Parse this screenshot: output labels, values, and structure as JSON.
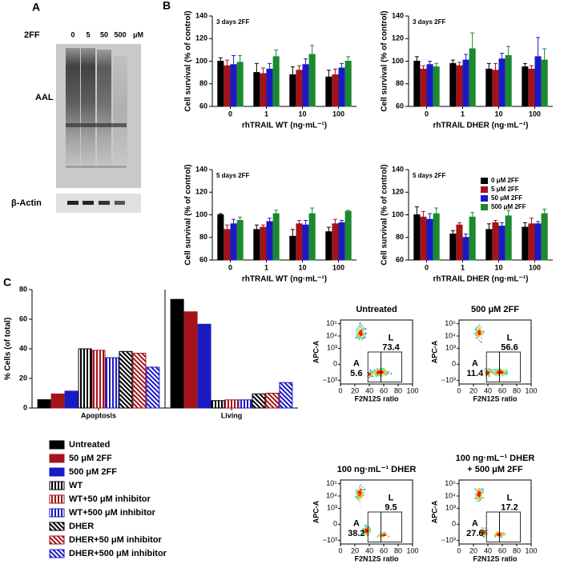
{
  "panel_labels": [
    "A",
    "B",
    "C"
  ],
  "blot": {
    "treatment": "2FF",
    "doses": [
      "0",
      "5",
      "50",
      "500"
    ],
    "unit": "μM",
    "labels": [
      "AAL",
      "β-Actin"
    ]
  },
  "chart_data": [
    {
      "type": "bar",
      "title": "3 days 2FF",
      "ylabel": "Cell survival (% of control)",
      "xlabel": "rhTRAIL WT (ng·mL⁻¹)",
      "categories": [
        "0",
        "1",
        "10",
        "100"
      ],
      "ylim": [
        60,
        140
      ],
      "yticks": [
        60,
        80,
        100,
        120,
        140
      ],
      "series": [
        {
          "color": "#000000",
          "values": [
            100,
            90,
            88,
            86
          ],
          "errors": [
            3,
            8,
            7,
            6
          ]
        },
        {
          "color": "#a3141a",
          "values": [
            96,
            89,
            92,
            88
          ],
          "errors": [
            5,
            5,
            4,
            5
          ]
        },
        {
          "color": "#1a1ac4",
          "values": [
            97,
            93,
            97,
            94
          ],
          "errors": [
            8,
            5,
            5,
            4
          ]
        },
        {
          "color": "#1b8a2e",
          "values": [
            99,
            104,
            106,
            100
          ],
          "errors": [
            6,
            6,
            8,
            4
          ]
        }
      ]
    },
    {
      "type": "bar",
      "title": "3 days 2FF",
      "ylabel": "Cell survival (% of control)",
      "xlabel": "rhTRAIL DHER (ng·mL⁻¹)",
      "categories": [
        "0",
        "1",
        "10",
        "100"
      ],
      "ylim": [
        60,
        140
      ],
      "yticks": [
        60,
        80,
        100,
        120,
        140
      ],
      "series": [
        {
          "color": "#000000",
          "values": [
            100,
            98,
            93,
            95
          ],
          "errors": [
            4,
            3,
            5,
            3
          ]
        },
        {
          "color": "#a3141a",
          "values": [
            93,
            96,
            92,
            93
          ],
          "errors": [
            3,
            3,
            6,
            3
          ]
        },
        {
          "color": "#1a1ac4",
          "values": [
            97,
            101,
            102,
            104
          ],
          "errors": [
            3,
            5,
            5,
            17
          ]
        },
        {
          "color": "#1b8a2e",
          "values": [
            95,
            111,
            105,
            101
          ],
          "errors": [
            3,
            14,
            8,
            10
          ]
        }
      ]
    },
    {
      "type": "bar",
      "title": "5 days 2FF",
      "ylabel": "Cell survival (% of control)",
      "xlabel": "rhTRAIL WT (ng·mL⁻¹)",
      "categories": [
        "0",
        "1",
        "10",
        "100"
      ],
      "ylim": [
        60,
        140
      ],
      "yticks": [
        60,
        80,
        100,
        120,
        140
      ],
      "series": [
        {
          "color": "#000000",
          "values": [
            100,
            87,
            81,
            85
          ],
          "errors": [
            1,
            4,
            6,
            4
          ]
        },
        {
          "color": "#a3141a",
          "values": [
            87,
            89,
            92,
            92
          ],
          "errors": [
            4,
            2,
            3,
            4
          ]
        },
        {
          "color": "#1a1ac4",
          "values": [
            92,
            94,
            91,
            93
          ],
          "errors": [
            4,
            3,
            4,
            2
          ]
        },
        {
          "color": "#1b8a2e",
          "values": [
            95,
            101,
            101,
            103
          ],
          "errors": [
            3,
            3,
            5,
            1
          ]
        }
      ]
    },
    {
      "type": "bar",
      "title": "5 days 2FF",
      "ylabel": "Cell survival (% of control)",
      "xlabel": "rhTRAIL DHER (ng·mL⁻¹)",
      "categories": [
        "0",
        "1",
        "10",
        "100"
      ],
      "ylim": [
        60,
        140
      ],
      "yticks": [
        60,
        80,
        100,
        120,
        140
      ],
      "legend": "upper right",
      "series": [
        {
          "name": "0 μM 2FF",
          "color": "#000000",
          "values": [
            100,
            83,
            87,
            89
          ],
          "errors": [
            7,
            3,
            5,
            4
          ]
        },
        {
          "name": "5 μM 2FF",
          "color": "#a3141a",
          "values": [
            98,
            91,
            93,
            92
          ],
          "errors": [
            5,
            2,
            2,
            5
          ]
        },
        {
          "name": "50 μM 2FF",
          "color": "#1a1ac4",
          "values": [
            96,
            80,
            90,
            92
          ],
          "errors": [
            5,
            3,
            3,
            2
          ]
        },
        {
          "name": "500 μM 2FF",
          "color": "#1b8a2e",
          "values": [
            101,
            98,
            99,
            101
          ],
          "errors": [
            5,
            4,
            5,
            4
          ]
        }
      ]
    },
    {
      "type": "bar",
      "ylabel": "% Cells (of total)",
      "categories": [
        "Apoptosis",
        "Living"
      ],
      "ylim": [
        0,
        80
      ],
      "yticks": [
        0,
        20,
        40,
        60,
        80
      ],
      "axis_break": true,
      "legend": "below",
      "series": [
        {
          "name": "Untreated",
          "color": "#000000",
          "pattern": "solid",
          "values": [
            5.6,
            73.4
          ]
        },
        {
          "name": "50 μM 2FF",
          "color": "#a3141a",
          "pattern": "solid",
          "values": [
            9.5,
            65
          ]
        },
        {
          "name": "500 μM 2FF",
          "color": "#1a1ac4",
          "pattern": "solid",
          "values": [
            11.4,
            56.6
          ]
        },
        {
          "name": "WT",
          "color": "#000000",
          "pattern": "vertical",
          "values": [
            40,
            5
          ]
        },
        {
          "name": "WT+50 μM inhibitor",
          "color": "#a3141a",
          "pattern": "vertical",
          "values": [
            39,
            5.5
          ]
        },
        {
          "name": "WT+500 μM inhibitor",
          "color": "#1a1ac4",
          "pattern": "vertical",
          "values": [
            34,
            5.5
          ]
        },
        {
          "name": "DHER",
          "color": "#000000",
          "pattern": "diagonal",
          "values": [
            38.2,
            9.5
          ]
        },
        {
          "name": "DHER+50 μM inhibitor",
          "color": "#a3141a",
          "pattern": "diagonal",
          "values": [
            37,
            10
          ]
        },
        {
          "name": "DHER+500 μM inhibitor",
          "color": "#1a1ac4",
          "pattern": "diagonal",
          "values": [
            27.6,
            17.2
          ]
        }
      ]
    }
  ],
  "flow": [
    {
      "title": [
        "Untreated"
      ],
      "xlabel": "F2N12S ratio",
      "ylabel": "APC-A",
      "xlim": [
        0,
        100
      ],
      "xticks": [
        0,
        20,
        40,
        60,
        80,
        100
      ],
      "ylim": [
        -2000,
        200000
      ],
      "yscale": "biexponential",
      "yticks": [
        {
          "value": 100000,
          "label": "10⁵"
        },
        {
          "value": 10000,
          "label": "10⁴"
        },
        {
          "value": 1000,
          "label": "10³"
        },
        0,
        {
          "value": -1000,
          "label": "−10³"
        }
      ],
      "gates": [
        {
          "name": "A",
          "value": 5.6
        },
        {
          "name": "L",
          "value": 73.4
        }
      ]
    },
    {
      "title": [
        "500 μM 2FF"
      ],
      "xlabel": "F2N12S ratio",
      "ylabel": "APC-A",
      "xlim": [
        0,
        100
      ],
      "xticks": [
        0,
        20,
        40,
        60,
        80,
        100
      ],
      "ylim": [
        -2000,
        200000
      ],
      "yscale": "biexponential",
      "yticks": [
        {
          "value": 100000,
          "label": "10⁵"
        },
        {
          "value": 10000,
          "label": "10⁴"
        },
        {
          "value": 1000,
          "label": "10³"
        },
        0,
        {
          "value": -1000,
          "label": "−10³"
        }
      ],
      "gates": [
        {
          "name": "A",
          "value": 11.4
        },
        {
          "name": "L",
          "value": 56.6
        }
      ]
    },
    {
      "title": [
        "100 ng·mL⁻¹ DHER"
      ],
      "xlabel": "F2N12S ratio",
      "ylabel": "APC-A",
      "xlim": [
        0,
        100
      ],
      "xticks": [
        0,
        20,
        40,
        60,
        80,
        100
      ],
      "ylim": [
        -2000,
        200000
      ],
      "yscale": "biexponential",
      "yticks": [
        {
          "value": 100000,
          "label": "10⁵"
        },
        {
          "value": 10000,
          "label": "10⁴"
        },
        {
          "value": 1000,
          "label": "10³"
        },
        0,
        {
          "value": -1000,
          "label": "−10³"
        }
      ],
      "gates": [
        {
          "name": "A",
          "value": 38.2
        },
        {
          "name": "L",
          "value": 9.5
        }
      ]
    },
    {
      "title": [
        "100 ng·mL⁻¹ DHER",
        "+ 500 μM 2FF"
      ],
      "xlabel": "F2N12S ratio",
      "ylabel": "APC-A",
      "xlim": [
        0,
        100
      ],
      "xticks": [
        0,
        20,
        40,
        60,
        80,
        100
      ],
      "ylim": [
        -2000,
        200000
      ],
      "yscale": "biexponential",
      "yticks": [
        {
          "value": 100000,
          "label": "10⁵"
        },
        {
          "value": 10000,
          "label": "10⁴"
        },
        {
          "value": 1000,
          "label": "10³"
        },
        0,
        {
          "value": -1000,
          "label": "−10³"
        }
      ],
      "gates": [
        {
          "name": "A",
          "value": 27.6
        },
        {
          "name": "L",
          "value": 17.2
        }
      ]
    }
  ]
}
